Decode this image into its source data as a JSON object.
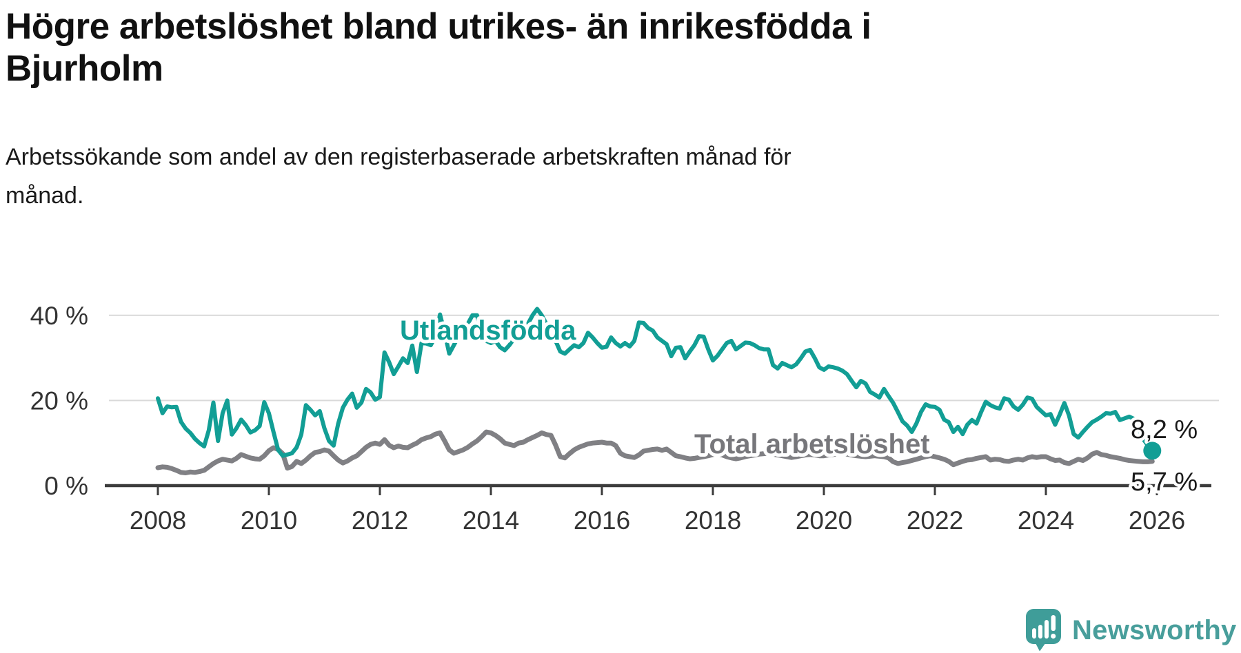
{
  "title": {
    "line1": "Högre arbetslöshet bland utrikes- än inrikesfödda i",
    "line2": "Bjurholm"
  },
  "subtitle": {
    "line1": "Arbetssökande som andel av den registerbaserade arbetskraften månad för",
    "line2": "månad."
  },
  "logo": {
    "text": "Newsworthy"
  },
  "colors": {
    "teal": "#129e95",
    "gray": "#808084",
    "gray_label": "#77777b",
    "axis_text": "#333333",
    "axis_line": "#3c3c3c",
    "gridline": "#d9d9d9",
    "end_label_text": "#1a1a1a",
    "logo_teal": "#3f9d99",
    "background": "#ffffff"
  },
  "chart_data": {
    "type": "line",
    "title": "Högre arbetslöshet bland utrikes- än inrikesfödda i Bjurholm",
    "xlabel": "",
    "ylabel": "Arbetssökande som andel av den registerbaserade arbetskraften",
    "frequency": "monthly",
    "x_start_year": 2008,
    "x_end_year": 2026,
    "ylim": [
      0,
      44
    ],
    "grid": "horizontal",
    "y_ticks": [
      {
        "value": 0,
        "label": "0 %"
      },
      {
        "value": 20,
        "label": "20 %"
      },
      {
        "value": 40,
        "label": "40 %"
      }
    ],
    "x_ticks": [
      {
        "year": 2008,
        "label": "2008"
      },
      {
        "year": 2010,
        "label": "2010"
      },
      {
        "year": 2012,
        "label": "2012"
      },
      {
        "year": 2014,
        "label": "2014"
      },
      {
        "year": 2016,
        "label": "2016"
      },
      {
        "year": 2018,
        "label": "2018"
      },
      {
        "year": 2020,
        "label": "2020"
      },
      {
        "year": 2022,
        "label": "2022"
      },
      {
        "year": 2024,
        "label": "2024"
      },
      {
        "year": 2026,
        "label": "2026"
      }
    ],
    "series": [
      {
        "name": "Utlandsfödda",
        "color": "#129e95",
        "end_label": "8,2 %",
        "end_dot": true,
        "values": [
          20.5,
          17.0,
          18.6,
          18.4,
          18.5,
          15.0,
          13.4,
          12.4,
          11.0,
          10.0,
          9.2,
          13.0,
          19.5,
          10.5,
          17.0,
          20.0,
          12.0,
          13.5,
          15.5,
          14.2,
          12.5,
          13.0,
          14.0,
          19.6,
          17.0,
          12.6,
          8.4,
          7.0,
          7.3,
          7.6,
          9.0,
          12.0,
          18.9,
          17.8,
          16.5,
          17.5,
          13.5,
          10.5,
          9.4,
          14.6,
          18.3,
          20.2,
          21.6,
          18.3,
          19.5,
          22.7,
          21.9,
          20.2,
          20.8,
          31.3,
          29.0,
          26.2,
          28.0,
          29.9,
          28.8,
          32.9,
          26.7,
          33.5,
          33.4,
          33.0,
          35.0,
          40.2,
          36.0,
          31.0,
          33.0,
          35.0,
          36.5,
          38.0,
          40.0,
          40.0,
          36.0,
          34.0,
          33.5,
          34.0,
          32.5,
          31.8,
          33.0,
          34.5,
          35.5,
          36.5,
          38.0,
          40.0,
          41.5,
          40.0,
          38.0,
          36.5,
          34.0,
          31.5,
          31.0,
          32.0,
          33.0,
          32.5,
          33.5,
          35.9,
          34.8,
          33.5,
          32.4,
          32.6,
          34.8,
          33.5,
          32.7,
          33.5,
          32.7,
          34.0,
          38.3,
          38.2,
          37.0,
          36.4,
          34.8,
          34.0,
          33.2,
          30.4,
          32.4,
          32.5,
          29.9,
          31.5,
          33.0,
          35.1,
          35.0,
          32.0,
          29.4,
          30.5,
          32.0,
          33.5,
          34.0,
          32.0,
          32.8,
          33.6,
          33.5,
          33.0,
          32.3,
          32.0,
          32.0,
          28.3,
          27.5,
          28.8,
          28.3,
          27.8,
          28.5,
          29.9,
          31.5,
          31.9,
          30.0,
          27.8,
          27.2,
          28.0,
          27.8,
          27.5,
          27.0,
          26.2,
          24.6,
          23.1,
          24.6,
          24.0,
          22.0,
          21.4,
          20.7,
          22.7,
          21.0,
          19.4,
          17.3,
          15.1,
          14.1,
          12.6,
          14.6,
          17.3,
          19.1,
          18.6,
          18.5,
          17.8,
          15.5,
          14.9,
          12.6,
          13.8,
          12.1,
          14.3,
          15.4,
          14.6,
          17.3,
          19.7,
          18.9,
          18.4,
          18.1,
          20.5,
          20.2,
          18.6,
          17.8,
          19.0,
          20.7,
          20.4,
          18.5,
          17.5,
          16.5,
          16.8,
          14.3,
          16.7,
          19.4,
          16.5,
          12.1,
          11.3,
          12.6,
          13.8,
          14.9,
          15.5,
          16.2,
          17.0,
          16.9,
          17.3,
          15.4,
          15.8,
          16.2,
          15.7,
          13.5,
          11.0,
          9.5,
          8.2
        ]
      },
      {
        "name": "Total arbetslöshet",
        "color": "#808084",
        "end_label": "5,7 %",
        "end_dot": false,
        "values": [
          4.2,
          4.4,
          4.3,
          4.0,
          3.6,
          3.1,
          3.0,
          3.2,
          3.1,
          3.3,
          3.6,
          4.4,
          5.2,
          5.8,
          6.2,
          6.0,
          5.8,
          6.4,
          7.3,
          6.9,
          6.5,
          6.3,
          6.2,
          7.0,
          8.2,
          8.9,
          8.5,
          7.5,
          4.1,
          4.5,
          5.7,
          5.2,
          6.0,
          7.0,
          7.8,
          8.0,
          8.4,
          8.1,
          7.0,
          6.0,
          5.3,
          5.8,
          6.5,
          7.0,
          8.0,
          9.0,
          9.7,
          10.0,
          9.7,
          10.8,
          9.5,
          8.9,
          9.3,
          9.0,
          8.9,
          9.5,
          10.0,
          10.8,
          11.2,
          11.5,
          12.1,
          12.4,
          10.5,
          8.4,
          7.6,
          8.0,
          8.4,
          9.0,
          9.8,
          10.5,
          11.5,
          12.6,
          12.4,
          11.8,
          11.0,
          10.0,
          9.7,
          9.4,
          10.0,
          10.2,
          10.8,
          11.3,
          11.8,
          12.4,
          12.0,
          11.8,
          9.5,
          6.8,
          6.5,
          7.5,
          8.4,
          9.0,
          9.4,
          9.8,
          10.0,
          10.1,
          10.2,
          10.0,
          10.0,
          9.4,
          7.6,
          7.0,
          6.8,
          6.6,
          7.2,
          8.1,
          8.3,
          8.5,
          8.6,
          8.3,
          8.6,
          7.8,
          7.0,
          6.8,
          6.5,
          6.3,
          6.4,
          6.6,
          6.8,
          7.0,
          7.3,
          7.5,
          7.2,
          6.8,
          6.5,
          6.3,
          6.5,
          6.8,
          7.0,
          7.2,
          7.4,
          7.5,
          7.6,
          7.4,
          7.2,
          7.0,
          6.8,
          6.6,
          6.8,
          7.0,
          7.2,
          7.3,
          7.2,
          7.0,
          7.0,
          7.2,
          7.3,
          7.5,
          7.6,
          7.4,
          7.2,
          7.0,
          6.9,
          6.8,
          6.9,
          7.0,
          6.9,
          6.8,
          6.5,
          5.6,
          5.2,
          5.4,
          5.6,
          5.9,
          6.2,
          6.5,
          6.8,
          7.0,
          6.8,
          6.5,
          6.2,
          5.7,
          4.9,
          5.3,
          5.7,
          6.0,
          6.1,
          6.4,
          6.6,
          6.8,
          6.0,
          6.2,
          6.1,
          5.8,
          5.7,
          6.0,
          6.2,
          6.0,
          6.5,
          6.8,
          6.6,
          6.8,
          6.8,
          6.3,
          5.9,
          6.0,
          5.4,
          5.2,
          5.7,
          6.2,
          5.9,
          6.5,
          7.4,
          7.8,
          7.3,
          7.1,
          6.8,
          6.6,
          6.4,
          6.1,
          5.9,
          5.8,
          5.7,
          5.6,
          5.6,
          5.7
        ]
      }
    ]
  }
}
